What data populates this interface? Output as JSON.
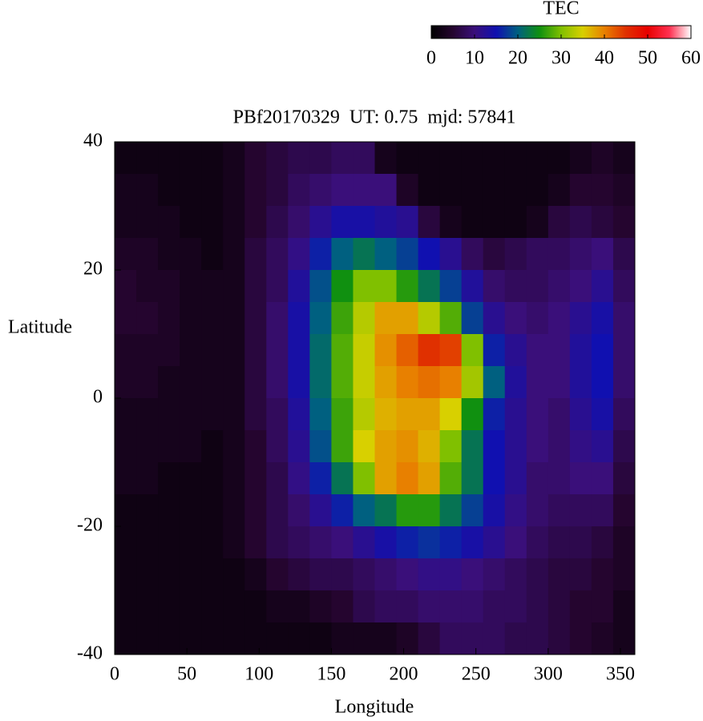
{
  "chart_data": {
    "type": "heatmap",
    "title": "PBf20170329  UT: 0.75  mjd: 57841",
    "x_label": "Longitude",
    "y_label": "Latitude",
    "colorbar_label": "TEC",
    "xlim": [
      0,
      360
    ],
    "ylim": [
      -40,
      40
    ],
    "xticks": [
      0,
      50,
      100,
      150,
      200,
      250,
      300,
      350
    ],
    "yticks": [
      -40,
      -20,
      0,
      20,
      40
    ],
    "clim": [
      0,
      60
    ],
    "cticks": [
      0,
      10,
      20,
      30,
      40,
      50,
      60
    ],
    "colors": [
      "#000000",
      "#25052f",
      "#3a0f7a",
      "#1010b0",
      "#006080",
      "#109010",
      "#80c000",
      "#d8d000",
      "#e88000",
      "#e03000",
      "#e80000",
      "#ff3050",
      "#ffffff"
    ],
    "x": [
      7.5,
      22.5,
      37.5,
      52.5,
      67.5,
      82.5,
      97.5,
      112.5,
      127.5,
      142.5,
      157.5,
      172.5,
      187.5,
      202.5,
      217.5,
      232.5,
      247.5,
      262.5,
      277.5,
      292.5,
      307.5,
      322.5,
      337.5,
      352.5
    ],
    "y": [
      37.5,
      32.5,
      27.5,
      22.5,
      17.5,
      12.5,
      7.5,
      2.5,
      -2.5,
      -7.5,
      -12.5,
      -17.5,
      -22.5,
      -27.5,
      -32.5,
      -37.5
    ],
    "values": [
      [
        2,
        2,
        2,
        2,
        2,
        3,
        5,
        6,
        7,
        7,
        8,
        8,
        3,
        2,
        2,
        2,
        2,
        2,
        2,
        2,
        2,
        3,
        4,
        3
      ],
      [
        3,
        3,
        2,
        2,
        2,
        3,
        5,
        6,
        8,
        9,
        10,
        10,
        10,
        4,
        2,
        2,
        2,
        2,
        2,
        2,
        3,
        5,
        5,
        4
      ],
      [
        3,
        3,
        3,
        2,
        2,
        3,
        5,
        7,
        9,
        12,
        14,
        14,
        13,
        12,
        6,
        3,
        2,
        2,
        2,
        3,
        6,
        7,
        6,
        5
      ],
      [
        4,
        4,
        3,
        3,
        2,
        3,
        6,
        8,
        11,
        16,
        20,
        22,
        20,
        18,
        15,
        12,
        8,
        6,
        7,
        8,
        8,
        9,
        10,
        7
      ],
      [
        5,
        4,
        4,
        3,
        3,
        3,
        6,
        8,
        13,
        19,
        25,
        30,
        30,
        26,
        22,
        18,
        13,
        9,
        8,
        8,
        9,
        10,
        12,
        8
      ],
      [
        5,
        5,
        4,
        3,
        3,
        3,
        6,
        9,
        14,
        20,
        27,
        33,
        38,
        38,
        33,
        28,
        18,
        12,
        10,
        9,
        10,
        12,
        14,
        9
      ],
      [
        4,
        4,
        4,
        3,
        3,
        3,
        6,
        9,
        14,
        21,
        28,
        34,
        39,
        42,
        45,
        44,
        30,
        16,
        12,
        10,
        10,
        13,
        15,
        9
      ],
      [
        4,
        4,
        3,
        3,
        3,
        3,
        6,
        9,
        14,
        21,
        28,
        34,
        38,
        40,
        41,
        40,
        32,
        20,
        13,
        10,
        10,
        13,
        15,
        9
      ],
      [
        3,
        3,
        3,
        3,
        3,
        3,
        6,
        8,
        13,
        20,
        27,
        33,
        37,
        38,
        38,
        35,
        25,
        16,
        12,
        10,
        9,
        12,
        14,
        8
      ],
      [
        3,
        3,
        3,
        3,
        2,
        3,
        5,
        8,
        12,
        19,
        27,
        35,
        38,
        39,
        37,
        30,
        22,
        15,
        12,
        10,
        9,
        11,
        12,
        7
      ],
      [
        3,
        3,
        2,
        2,
        2,
        3,
        5,
        7,
        11,
        16,
        22,
        30,
        38,
        40,
        38,
        28,
        22,
        15,
        12,
        9,
        9,
        10,
        10,
        6
      ],
      [
        2,
        2,
        2,
        2,
        2,
        3,
        5,
        7,
        9,
        12,
        16,
        20,
        22,
        26,
        26,
        22,
        18,
        14,
        11,
        9,
        8,
        8,
        8,
        5
      ],
      [
        2,
        2,
        2,
        2,
        2,
        3,
        5,
        7,
        8,
        9,
        10,
        12,
        14,
        16,
        17,
        16,
        14,
        12,
        10,
        8,
        7,
        7,
        6,
        4
      ],
      [
        2,
        2,
        2,
        2,
        2,
        2,
        3,
        5,
        6,
        7,
        7,
        8,
        9,
        10,
        11,
        11,
        10,
        9,
        8,
        7,
        6,
        6,
        5,
        4
      ],
      [
        2,
        2,
        2,
        2,
        2,
        2,
        2,
        3,
        3,
        4,
        5,
        7,
        8,
        8,
        9,
        9,
        9,
        8,
        8,
        7,
        6,
        5,
        5,
        3
      ],
      [
        2,
        2,
        2,
        2,
        2,
        2,
        2,
        2,
        2,
        2,
        3,
        3,
        3,
        4,
        6,
        8,
        8,
        8,
        7,
        7,
        6,
        5,
        4,
        3
      ]
    ]
  }
}
